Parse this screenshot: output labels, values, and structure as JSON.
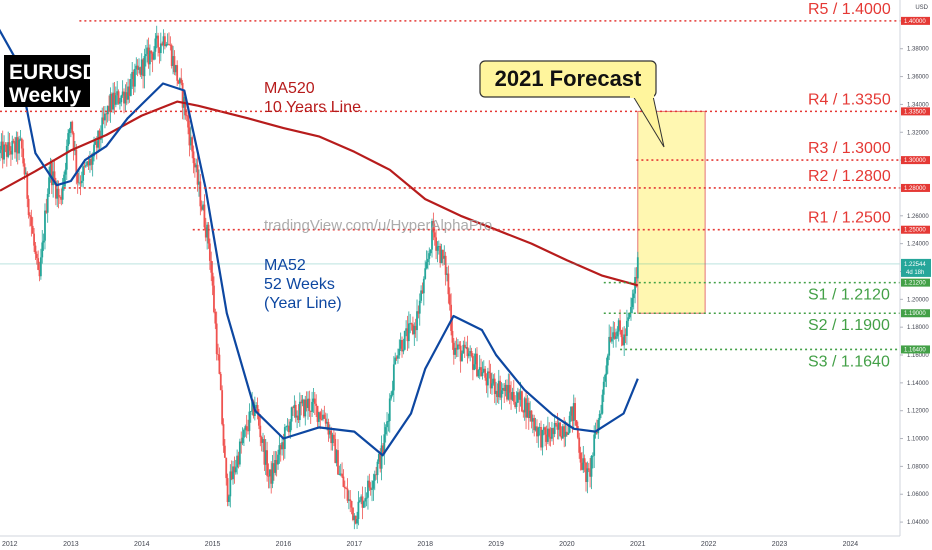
{
  "chart_data": {
    "type": "candlestick",
    "symbol": "EURUSD",
    "timeframe": "Weekly",
    "currency_label": "USD",
    "title": "2021 Forecast",
    "watermark": "tradingView.com/u/HyperAlphaPro",
    "x_axis": {
      "type": "time",
      "range": [
        2012,
        2024.7
      ],
      "ticks": [
        "2012",
        "2013",
        "2014",
        "2015",
        "2016",
        "2017",
        "2018",
        "2019",
        "2020",
        "2021",
        "2022",
        "2023",
        "2024"
      ]
    },
    "y_axis": {
      "range": [
        1.03,
        1.415
      ],
      "ticks": [
        "1.04000",
        "1.06000",
        "1.08000",
        "1.10000",
        "1.12000",
        "1.14000",
        "1.16000",
        "1.18000",
        "1.20000",
        "1.22000",
        "1.24000",
        "1.26000",
        "1.28000",
        "1.30000",
        "1.32000",
        "1.34000",
        "1.36000",
        "1.38000",
        "1.40000"
      ],
      "decimals": 5
    },
    "current_price": {
      "value": 1.22544,
      "display": "1.22544",
      "countdown": "4d 18h"
    },
    "levels": [
      {
        "name": "R5",
        "value": 1.4,
        "label": "R5 / 1.4000",
        "tag": "1.40000",
        "kind": "resistance",
        "x_start": 2013.12
      },
      {
        "name": "R4",
        "value": 1.335,
        "label": "R4 / 1.3350",
        "tag": "1.33500",
        "kind": "resistance",
        "x_start": 2012.0
      },
      {
        "name": "R3",
        "value": 1.3,
        "label": "R3 / 1.3000",
        "tag": "1.30000",
        "kind": "resistance",
        "x_start": 2020.98
      },
      {
        "name": "R2",
        "value": 1.28,
        "label": "R2 / 1.2800",
        "tag": "1.28000",
        "kind": "resistance",
        "x_start": 2012.9
      },
      {
        "name": "R1",
        "value": 1.25,
        "label": "R1 / 1.2500",
        "tag": "1.25000",
        "kind": "resistance",
        "x_start": 2014.72
      },
      {
        "name": "S1",
        "value": 1.212,
        "label": "S1 / 1.2120",
        "tag": "1.21200",
        "kind": "support",
        "x_start": 2020.52
      },
      {
        "name": "S2",
        "value": 1.19,
        "label": "S2 / 1.1900",
        "tag": "1.19000",
        "kind": "support",
        "x_start": 2020.52
      },
      {
        "name": "S3",
        "value": 1.164,
        "label": "S3 / 1.1640",
        "tag": "1.16400",
        "kind": "support",
        "x_start": 2020.75
      }
    ],
    "forecast_zone": {
      "x_from": 2021.0,
      "x_to": 2021.95,
      "y_low": 1.19,
      "y_high": 1.335
    },
    "moving_averages": [
      {
        "name": "MA520",
        "label_lines": [
          "MA520",
          "10 Years Line"
        ],
        "color": "#b71c1c",
        "points": [
          [
            2012.0,
            1.278
          ],
          [
            2012.5,
            1.292
          ],
          [
            2013.0,
            1.307
          ],
          [
            2013.5,
            1.318
          ],
          [
            2014.0,
            1.332
          ],
          [
            2014.5,
            1.342
          ],
          [
            2014.8,
            1.339
          ],
          [
            2015.5,
            1.33
          ],
          [
            2016.0,
            1.323
          ],
          [
            2016.5,
            1.317
          ],
          [
            2017.0,
            1.306
          ],
          [
            2017.5,
            1.293
          ],
          [
            2018.0,
            1.272
          ],
          [
            2018.5,
            1.26
          ],
          [
            2019.0,
            1.25
          ],
          [
            2019.5,
            1.24
          ],
          [
            2020.0,
            1.228
          ],
          [
            2020.5,
            1.217
          ],
          [
            2021.0,
            1.21
          ]
        ]
      },
      {
        "name": "MA52",
        "label_lines": [
          "MA52",
          "52 Weeks",
          "(Year Line)"
        ],
        "color": "#0d47a1",
        "points": [
          [
            2011.92,
            1.4
          ],
          [
            2012.25,
            1.37
          ],
          [
            2012.5,
            1.305
          ],
          [
            2012.8,
            1.282
          ],
          [
            2013.0,
            1.285
          ],
          [
            2013.2,
            1.3
          ],
          [
            2013.5,
            1.31
          ],
          [
            2013.8,
            1.33
          ],
          [
            2014.0,
            1.34
          ],
          [
            2014.3,
            1.355
          ],
          [
            2014.6,
            1.35
          ],
          [
            2014.9,
            1.28
          ],
          [
            2015.2,
            1.19
          ],
          [
            2015.6,
            1.12
          ],
          [
            2016.0,
            1.1
          ],
          [
            2016.5,
            1.108
          ],
          [
            2017.0,
            1.105
          ],
          [
            2017.4,
            1.088
          ],
          [
            2017.8,
            1.118
          ],
          [
            2018.0,
            1.15
          ],
          [
            2018.4,
            1.188
          ],
          [
            2018.8,
            1.178
          ],
          [
            2019.0,
            1.16
          ],
          [
            2019.4,
            1.135
          ],
          [
            2019.8,
            1.117
          ],
          [
            2020.1,
            1.107
          ],
          [
            2020.4,
            1.105
          ],
          [
            2020.8,
            1.118
          ],
          [
            2021.0,
            1.143
          ]
        ]
      }
    ],
    "price_path": [
      [
        2012.0,
        1.305
      ],
      [
        2012.3,
        1.31
      ],
      [
        2012.55,
        1.21
      ],
      [
        2012.7,
        1.295
      ],
      [
        2012.85,
        1.27
      ],
      [
        2013.0,
        1.33
      ],
      [
        2013.1,
        1.285
      ],
      [
        2013.3,
        1.3
      ],
      [
        2013.55,
        1.34
      ],
      [
        2013.8,
        1.35
      ],
      [
        2014.1,
        1.375
      ],
      [
        2014.35,
        1.39
      ],
      [
        2014.6,
        1.34
      ],
      [
        2014.8,
        1.28
      ],
      [
        2014.95,
        1.24
      ],
      [
        2015.1,
        1.14
      ],
      [
        2015.2,
        1.06
      ],
      [
        2015.4,
        1.095
      ],
      [
        2015.6,
        1.125
      ],
      [
        2015.8,
        1.07
      ],
      [
        2015.95,
        1.09
      ],
      [
        2016.1,
        1.115
      ],
      [
        2016.35,
        1.125
      ],
      [
        2016.6,
        1.115
      ],
      [
        2016.85,
        1.065
      ],
      [
        2017.0,
        1.045
      ],
      [
        2017.2,
        1.065
      ],
      [
        2017.4,
        1.09
      ],
      [
        2017.6,
        1.165
      ],
      [
        2017.85,
        1.18
      ],
      [
        2018.0,
        1.215
      ],
      [
        2018.1,
        1.25
      ],
      [
        2018.3,
        1.22
      ],
      [
        2018.4,
        1.165
      ],
      [
        2018.7,
        1.155
      ],
      [
        2018.9,
        1.14
      ],
      [
        2019.1,
        1.135
      ],
      [
        2019.4,
        1.125
      ],
      [
        2019.65,
        1.1
      ],
      [
        2019.85,
        1.105
      ],
      [
        2020.0,
        1.11
      ],
      [
        2020.1,
        1.12
      ],
      [
        2020.2,
        1.085
      ],
      [
        2020.3,
        1.07
      ],
      [
        2020.4,
        1.1
      ],
      [
        2020.5,
        1.13
      ],
      [
        2020.6,
        1.175
      ],
      [
        2020.7,
        1.18
      ],
      [
        2020.8,
        1.17
      ],
      [
        2020.9,
        1.19
      ],
      [
        2021.0,
        1.225
      ]
    ]
  }
}
